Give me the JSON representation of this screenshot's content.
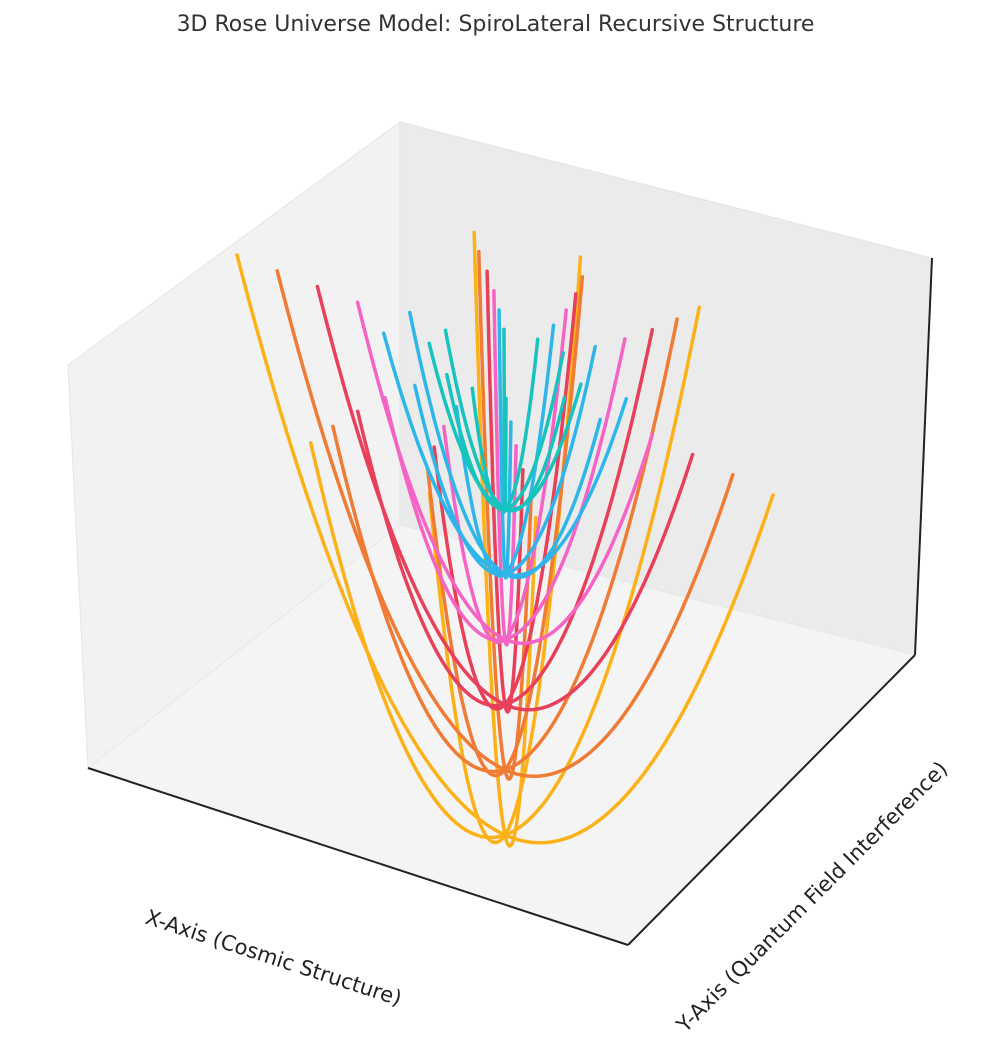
{
  "chart_data": {
    "type": "line3d",
    "title": "3D Rose Universe Model: SpiroLateral Recursive Structure",
    "xlabel": "X-Axis (Cosmic Structure)",
    "ylabel": "Y-Axis (Quantum Field Interference)",
    "grid": false,
    "legend": "none",
    "series": [
      {
        "color": "#fbb117",
        "scale": 1.0,
        "petal_angles": [
          0,
          55,
          75,
          100
        ]
      },
      {
        "color": "#f07b35",
        "scale": 0.85,
        "petal_angles": [
          0,
          55,
          78,
          102
        ]
      },
      {
        "color": "#e8405a",
        "scale": 0.7,
        "petal_angles": [
          0,
          56,
          80,
          104
        ]
      },
      {
        "color": "#f564c4",
        "scale": 0.55,
        "petal_angles": [
          0,
          57,
          82,
          106
        ]
      },
      {
        "color": "#2eb6ea",
        "scale": 0.4,
        "petal_angles": [
          -20,
          10,
          58,
          84,
          108
        ]
      },
      {
        "color": "#17c3bd",
        "scale": 0.25,
        "petal_angles": [
          -20,
          10,
          60,
          86,
          110
        ]
      }
    ]
  }
}
